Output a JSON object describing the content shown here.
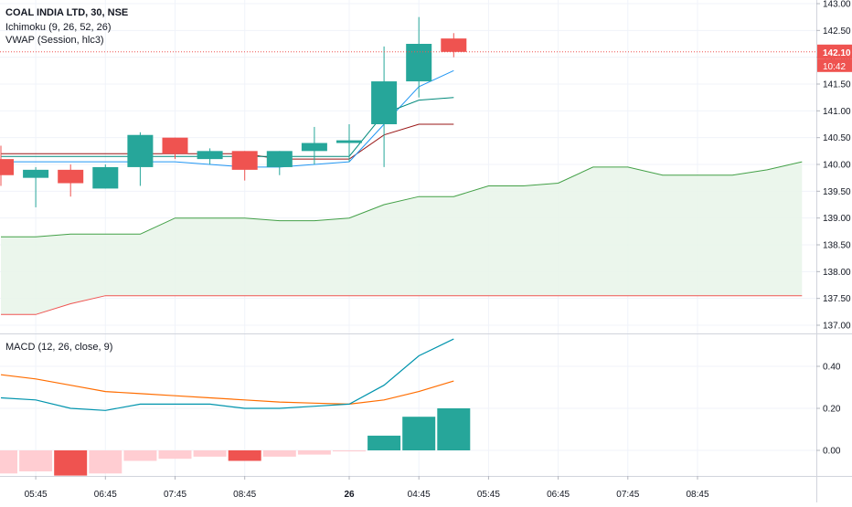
{
  "header": {
    "symbol_line": "COAL INDIA LTD, 30, NSE",
    "ichimoku_label": "Ichimoku (9, 26, 52, 26)",
    "vwap_label": "VWAP (Session, hlc3)",
    "macd_label": "MACD (12, 26, close, 9)"
  },
  "price_labels": {
    "last_price": "142.10",
    "countdown": "10:42"
  },
  "colors": {
    "up": "#26a69a",
    "down": "#ef5350",
    "conversion": "#0496ff",
    "base": "#991515",
    "cloud_span": "#43a047",
    "lagging": "#ef5350",
    "cloud_fill": "#e8f5e9",
    "macd_line": "#0094ad",
    "signal_line": "#ff6d00",
    "hist_up_strong": "#26a69a",
    "hist_down_strong": "#ef5350",
    "hist_down_weak": "#ffcdd2",
    "last_price_line": "#ef5350"
  },
  "chart_data": [
    {
      "type": "candlestick",
      "title": "COAL INDIA LTD, 30, NSE",
      "ylim": [
        136.9,
        143.1
      ],
      "yticks": [
        "137.00",
        "137.50",
        "138.00",
        "138.50",
        "139.00",
        "139.50",
        "140.00",
        "140.50",
        "141.00",
        "141.50",
        "142.00",
        "142.50",
        "143.00"
      ],
      "x_tick_labels": [
        "05:45",
        "06:45",
        "07:45",
        "08:45",
        "26",
        "04:45",
        "05:45",
        "06:45",
        "07:45",
        "08:45"
      ],
      "x_tick_index": [
        1,
        3,
        5,
        7,
        10,
        12,
        14,
        16,
        18,
        20
      ],
      "grid": true,
      "candles": [
        {
          "open": 140.1,
          "high": 140.35,
          "low": 139.6,
          "close": 139.8
        },
        {
          "open": 139.75,
          "high": 139.95,
          "low": 139.2,
          "close": 139.9
        },
        {
          "open": 139.9,
          "high": 140.0,
          "low": 139.4,
          "close": 139.65
        },
        {
          "open": 139.55,
          "high": 140.0,
          "low": 139.55,
          "close": 139.95
        },
        {
          "open": 139.95,
          "high": 140.6,
          "low": 139.6,
          "close": 140.55
        },
        {
          "open": 140.5,
          "high": 140.5,
          "low": 140.1,
          "close": 140.2
        },
        {
          "open": 140.1,
          "high": 140.3,
          "low": 140.0,
          "close": 140.25
        },
        {
          "open": 140.25,
          "high": 140.25,
          "low": 139.7,
          "close": 139.9
        },
        {
          "open": 139.95,
          "high": 140.25,
          "low": 139.8,
          "close": 140.25
        },
        {
          "open": 140.25,
          "high": 140.7,
          "low": 140.0,
          "close": 140.4
        },
        {
          "open": 140.4,
          "high": 140.75,
          "low": 140.05,
          "close": 140.45
        },
        {
          "open": 140.75,
          "high": 142.2,
          "low": 139.95,
          "close": 141.55
        },
        {
          "open": 141.55,
          "high": 142.75,
          "low": 141.25,
          "close": 142.25
        },
        {
          "open": 142.35,
          "high": 142.45,
          "low": 142.0,
          "close": 142.1
        }
      ],
      "ichimoku": {
        "conversion_line": [
          140.15,
          140.15,
          140.15,
          140.15,
          140.15,
          140.15,
          140.15,
          140.15,
          140.15,
          140.15,
          140.15,
          140.95,
          141.2,
          141.25
        ],
        "base_line": [
          140.2,
          140.2,
          140.2,
          140.2,
          140.2,
          140.2,
          140.2,
          140.2,
          140.1,
          140.1,
          140.1,
          140.55,
          140.75,
          140.75
        ],
        "vwap": [
          140.05,
          140.05,
          140.05,
          140.05,
          140.05,
          140.05,
          140.0,
          139.95,
          139.95,
          140.0,
          140.05,
          140.75,
          141.45,
          141.75
        ],
        "leading_span_a": [
          138.65,
          138.65,
          138.7,
          138.7,
          138.7,
          139.0,
          139.0,
          139.0,
          138.95,
          138.95,
          139.0,
          139.25,
          139.4,
          139.4,
          139.6,
          139.6,
          139.65,
          139.95,
          139.95,
          139.8,
          139.8,
          139.8,
          139.9,
          140.05
        ],
        "leading_span_b": [
          137.2,
          137.2,
          137.4,
          137.55,
          137.55,
          137.55,
          137.55,
          137.55,
          137.55,
          137.55,
          137.55,
          137.55,
          137.55,
          137.55,
          137.55,
          137.55,
          137.55,
          137.55,
          137.55,
          137.55,
          137.55,
          137.55,
          137.55,
          137.55
        ]
      }
    },
    {
      "type": "bar",
      "title": "MACD (12, 26, close, 9)",
      "ylim": [
        -0.12,
        0.56
      ],
      "yticks": [
        "0.00",
        "0.20",
        "0.40"
      ],
      "series": [
        {
          "name": "MACD",
          "values": [
            0.25,
            0.24,
            0.2,
            0.19,
            0.22,
            0.22,
            0.22,
            0.2,
            0.2,
            0.21,
            0.22,
            0.31,
            0.45,
            0.53
          ]
        },
        {
          "name": "Signal",
          "values": [
            0.36,
            0.34,
            0.31,
            0.28,
            0.27,
            0.26,
            0.25,
            0.24,
            0.23,
            0.225,
            0.22,
            0.24,
            0.28,
            0.33
          ]
        },
        {
          "name": "Histogram",
          "values": [
            -0.11,
            -0.1,
            -0.12,
            -0.11,
            -0.05,
            -0.04,
            -0.03,
            -0.05,
            -0.03,
            -0.02,
            -0.005,
            0.07,
            0.16,
            0.2
          ]
        }
      ]
    }
  ]
}
